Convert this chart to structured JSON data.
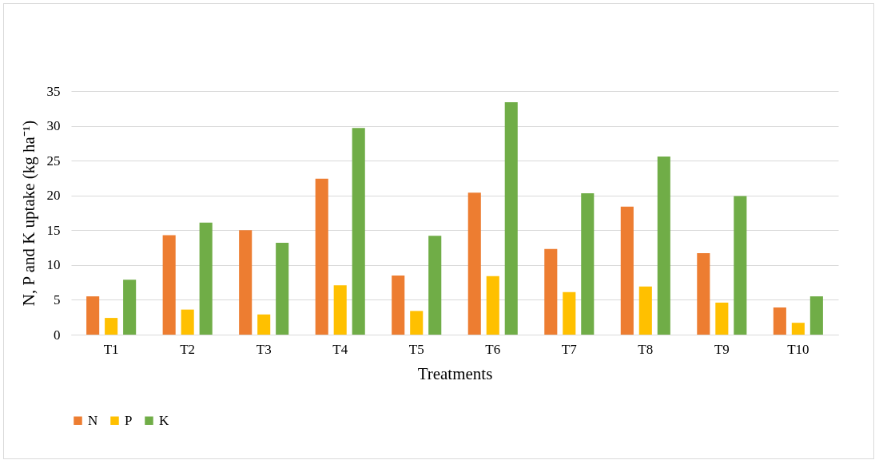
{
  "chart_data": {
    "type": "bar",
    "xlabel": "Treatments",
    "ylabel": "N, P and K  uptake (kg ha⁻¹)",
    "categories": [
      "T1",
      "T2",
      "T3",
      "T4",
      "T5",
      "T6",
      "T7",
      "T8",
      "T9",
      "T10"
    ],
    "series": [
      {
        "name": "N",
        "color": "#ed7d31",
        "values": [
          5.5,
          14.3,
          15.0,
          22.4,
          8.5,
          20.4,
          12.3,
          18.4,
          11.7,
          3.9
        ]
      },
      {
        "name": "P",
        "color": "#ffc000",
        "values": [
          2.4,
          3.6,
          2.9,
          7.1,
          3.4,
          8.4,
          6.1,
          6.9,
          4.6,
          1.7
        ]
      },
      {
        "name": "K",
        "color": "#70ad47",
        "values": [
          7.9,
          16.1,
          13.2,
          29.7,
          14.2,
          33.4,
          20.3,
          25.6,
          19.9,
          5.5
        ]
      }
    ],
    "ylim": [
      0,
      35
    ],
    "yticks": [
      0,
      5,
      10,
      15,
      20,
      25,
      30,
      35
    ],
    "grid": "y",
    "legend": "bottom"
  }
}
